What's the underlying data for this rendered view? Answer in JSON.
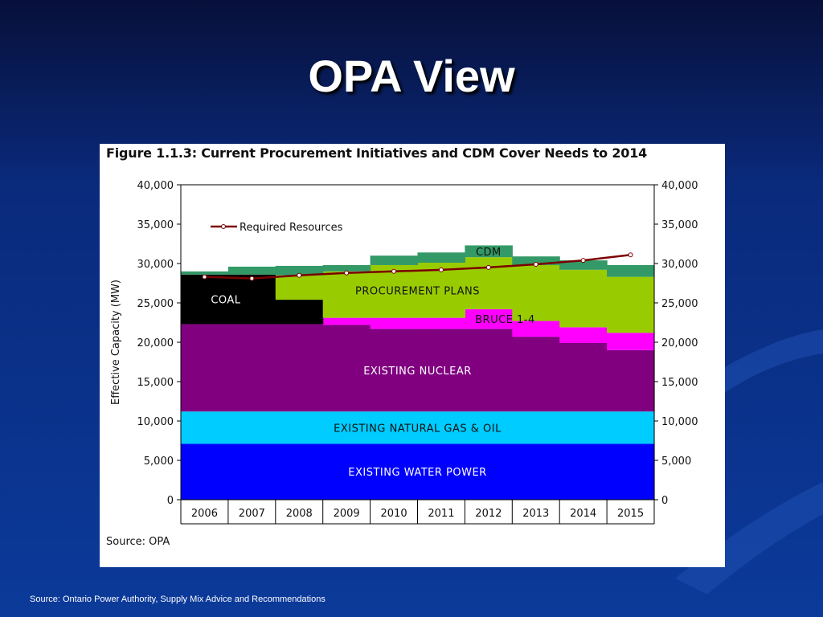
{
  "slide": {
    "title": "OPA View",
    "source_note": "Source: Ontario Power Authority, Supply Mix Advice and Recommendations"
  },
  "figure": {
    "title": "Figure 1.1.3:  Current Procurement Initiatives and CDM Cover Needs to 2014",
    "source": "Source: OPA"
  },
  "colors": {
    "background": "#0a2a7c",
    "water": "#0000ff",
    "gas_oil": "#00ccff",
    "nuclear": "#800080",
    "bruce": "#ff00ff",
    "coal": "#000000",
    "procurement": "#99cc00",
    "cdm": "#339966",
    "required_line": "#7a0000"
  },
  "chart_data": {
    "type": "area",
    "stacked": true,
    "ylabel": "Effective Capacity (MW)",
    "xlabel": "",
    "ylim": [
      0,
      40000
    ],
    "y_ticks": [
      "0",
      "5,000",
      "10,000",
      "15,000",
      "20,000",
      "25,000",
      "30,000",
      "35,000",
      "40,000"
    ],
    "y_tick_values": [
      0,
      5000,
      10000,
      15000,
      20000,
      25000,
      30000,
      35000,
      40000
    ],
    "categories": [
      "2006",
      "2007",
      "2008",
      "2009",
      "2010",
      "2011",
      "2012",
      "2013",
      "2014",
      "2015"
    ],
    "grid": false,
    "legend_position": "top-left",
    "series": [
      {
        "name": "EXISTING WATER POWER",
        "color_key": "water",
        "label_color": "#ffffff",
        "values": [
          7100,
          7100,
          7100,
          7100,
          7100,
          7100,
          7100,
          7100,
          7100,
          7100
        ]
      },
      {
        "name": "EXISTING NATURAL GAS & OIL",
        "color_key": "gas_oil",
        "label_color": "#111111",
        "values": [
          4100,
          4100,
          4100,
          4100,
          4100,
          4100,
          4100,
          4100,
          4100,
          4100
        ]
      },
      {
        "name": "EXISTING NUCLEAR",
        "color_key": "nuclear",
        "label_color": "#ffffff",
        "values": [
          11100,
          11100,
          11100,
          11000,
          10500,
          10500,
          10500,
          9500,
          8700,
          7800
        ]
      },
      {
        "name": "BRUCE 1-4",
        "color_key": "bruce",
        "label_color": "#111111",
        "values": [
          0,
          0,
          0,
          900,
          1400,
          1400,
          2500,
          2000,
          2000,
          2200
        ]
      },
      {
        "name": "COAL",
        "color_key": "coal",
        "label_color": "#ffffff",
        "values": [
          6300,
          6300,
          3100,
          0,
          0,
          0,
          0,
          0,
          0,
          0
        ]
      },
      {
        "name": "PROCUREMENT PLANS",
        "color_key": "procurement",
        "label_color": "#111111",
        "values": [
          0,
          0,
          3100,
          5900,
          6700,
          7000,
          6600,
          7100,
          7300,
          7100
        ]
      },
      {
        "name": "CDM",
        "color_key": "cdm",
        "label_color": "#111111",
        "values": [
          400,
          1000,
          1200,
          800,
          1200,
          1300,
          1500,
          1100,
          1200,
          1500
        ]
      }
    ],
    "required_resources": {
      "name": "Required Resources",
      "values": [
        28300,
        28100,
        28500,
        28800,
        29000,
        29200,
        29500,
        29900,
        30400,
        31100
      ]
    },
    "area_labels": [
      {
        "series": "CDM",
        "text": "CDM"
      },
      {
        "series": "PROCUREMENT PLANS",
        "text": "PROCUREMENT PLANS"
      },
      {
        "series": "BRUCE 1-4",
        "text": "BRUCE 1-4"
      },
      {
        "series": "COAL",
        "text": "COAL"
      },
      {
        "series": "EXISTING NUCLEAR",
        "text": "EXISTING NUCLEAR"
      },
      {
        "series": "EXISTING NATURAL GAS & OIL",
        "text": "EXISTING NATURAL GAS & OIL"
      },
      {
        "series": "EXISTING WATER POWER",
        "text": "EXISTING WATER POWER"
      }
    ]
  }
}
